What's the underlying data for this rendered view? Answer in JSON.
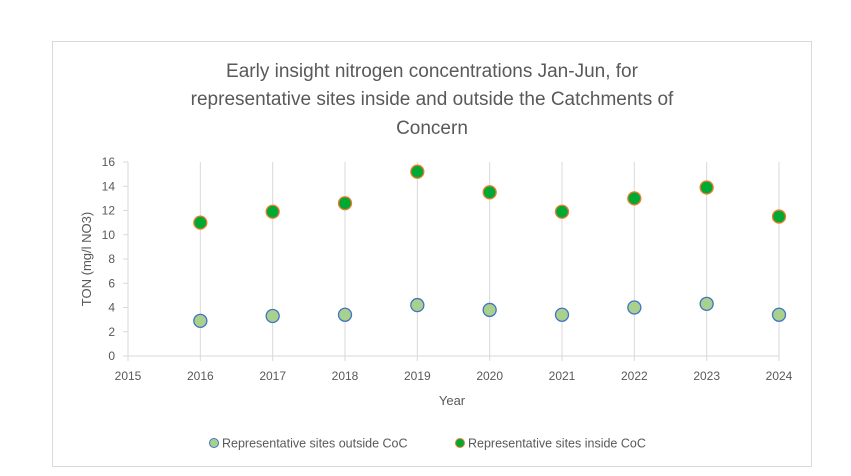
{
  "chart_data": {
    "type": "scatter",
    "title": [
      "Early insight nitrogen concentrations Jan-Jun, for",
      "representative sites inside and outside the Catchments of",
      "Concern"
    ],
    "xlabel": "Year",
    "ylabel": "TON (mg/l NO3)",
    "xlim": [
      2015,
      2024
    ],
    "ylim": [
      0,
      16
    ],
    "xticks": [
      2015,
      2016,
      2017,
      2018,
      2019,
      2020,
      2021,
      2022,
      2023,
      2024
    ],
    "yticks": [
      0,
      2,
      4,
      6,
      8,
      10,
      12,
      14,
      16
    ],
    "grid": "vertical",
    "legend_position": "bottom",
    "series": [
      {
        "name": "Representative sites outside CoC",
        "color": "#a9d18e",
        "edge_color": "#4472c4",
        "x": [
          2016,
          2017,
          2018,
          2019,
          2020,
          2021,
          2022,
          2023,
          2024
        ],
        "y": [
          2.9,
          3.3,
          3.4,
          4.2,
          3.8,
          3.4,
          4.0,
          4.3,
          3.4
        ]
      },
      {
        "name": "Representative sites inside CoC",
        "color": "#00a933",
        "edge_color": "#ed7d31",
        "x": [
          2016,
          2017,
          2018,
          2019,
          2020,
          2021,
          2022,
          2023,
          2024
        ],
        "y": [
          11.0,
          11.9,
          12.6,
          15.2,
          13.5,
          11.9,
          13.0,
          13.9,
          11.5
        ]
      }
    ]
  }
}
